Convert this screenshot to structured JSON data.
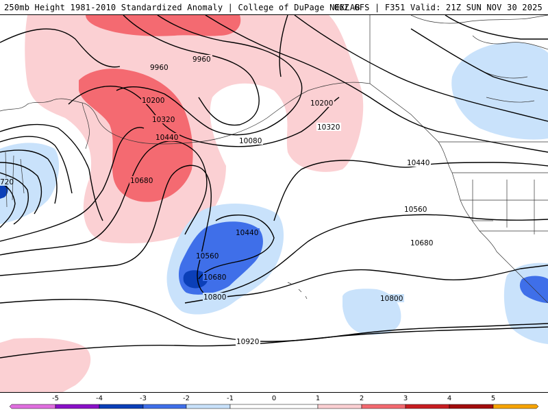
{
  "header": {
    "left": "250mb Height 1981-2010 Standardized Anomaly | College of DuPage NEXLAB",
    "right": "06Z GFS | F351 Valid: 21Z SUN NOV 30 2025"
  },
  "colors": {
    "neg5": "#e16fe0",
    "neg4": "#8a10c8",
    "neg3": "#0b3fb8",
    "neg2": "#3f6fe9",
    "neg1": "#c9e2fb",
    "zero": "#ffffff",
    "pos1": "#fbd0d3",
    "pos2": "#f46a71",
    "pos3": "#c81e22",
    "pos4": "#a20d0d",
    "pos5": "#f7a400",
    "land_outline": "#333333",
    "contour": "#000000"
  },
  "contour_labels": [
    "9960",
    "9960",
    "10200",
    "10320",
    "10440",
    "10680",
    "10080",
    "10200",
    "10320",
    "10440",
    "10560",
    "10680",
    "10440",
    "10560",
    "10680",
    "10800",
    "10800",
    "10920",
    "720"
  ],
  "colorbar": {
    "ticks": [
      "-5",
      "-4",
      "-3",
      "-2",
      "-1",
      "0",
      "1",
      "2",
      "3",
      "4",
      "5"
    ]
  }
}
